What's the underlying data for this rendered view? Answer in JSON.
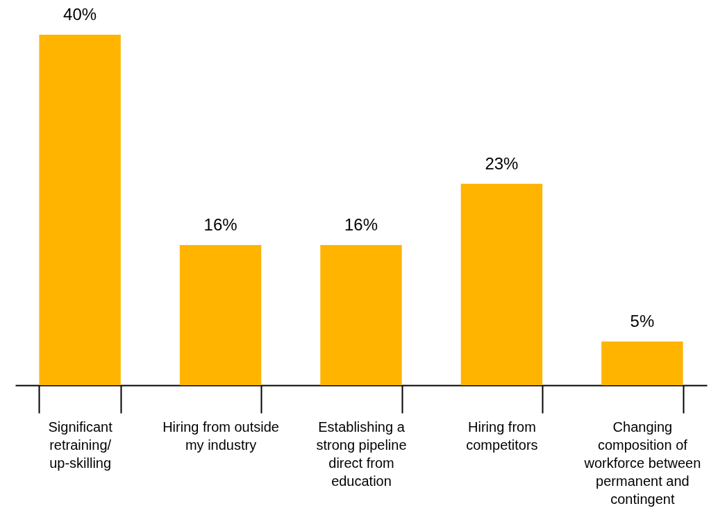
{
  "chart_data": {
    "type": "bar",
    "categories": [
      "Significant retraining/up-skilling",
      "Hiring from outside my industry",
      "Establishing a strong pipeline direct from education",
      "Hiring from competitors",
      "Changing composition of workforce between permanent and contingent"
    ],
    "values": [
      40,
      16,
      16,
      23,
      5
    ],
    "value_labels": [
      "40%",
      "16%",
      "16%",
      "23%",
      "5%"
    ],
    "color": "#ffb400"
  }
}
